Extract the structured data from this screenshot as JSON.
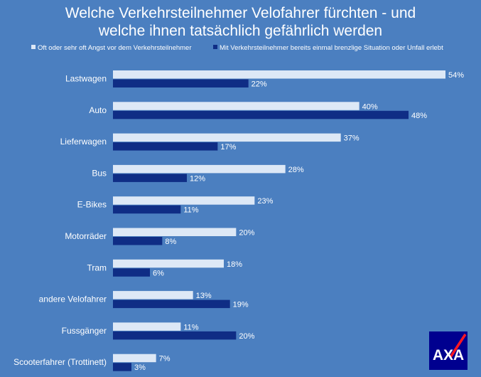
{
  "title_line1": "Welche Verkehrsteilnehmer Velofahrer fürchten -  und",
  "title_line2": "welche ihnen tatsächlich gefährlich werden",
  "logo_text": "AXA",
  "colors": {
    "background": "#4b7fc0",
    "series1": "#dde8f6",
    "series2": "#0f2d85",
    "text": "#ffffff",
    "logo": "#00008f",
    "logo_slash": "#ff1721"
  },
  "chart_data": {
    "type": "bar",
    "orientation": "horizontal",
    "title": "Welche Verkehrsteilnehmer Velofahrer fürchten -  und welche ihnen tatsächlich gefährlich werden",
    "categories": [
      "Lastwagen",
      "Auto",
      "Lieferwagen",
      "Bus",
      "E-Bikes",
      "Motorräder",
      "Tram",
      "andere Velofahrer",
      "Fussgänger",
      "Scooterfahrer (Trottinett)"
    ],
    "series": [
      {
        "name": "Oft oder sehr oft Angst vor dem Verkehrsteilnehmer",
        "values": [
          54,
          40,
          37,
          28,
          23,
          20,
          18,
          13,
          11,
          7
        ],
        "labels": [
          "54%",
          "40%",
          "37%",
          "28%",
          "23%",
          "20%",
          "18%",
          "13%",
          "11%",
          "7%"
        ]
      },
      {
        "name": "Mit Verkehrsteilnehmer bereits einmal brenzlige Situation oder Unfall erlebt",
        "values": [
          22,
          48,
          17,
          12,
          11,
          8,
          6,
          19,
          20,
          3
        ],
        "labels": [
          "22%",
          "48%",
          "17%",
          "12%",
          "11%",
          "8%",
          "6%",
          "19%",
          "20%",
          "3%"
        ]
      }
    ],
    "xlim": [
      0,
      60
    ],
    "value_suffix": "%",
    "grid": false,
    "legend_position": "top"
  }
}
